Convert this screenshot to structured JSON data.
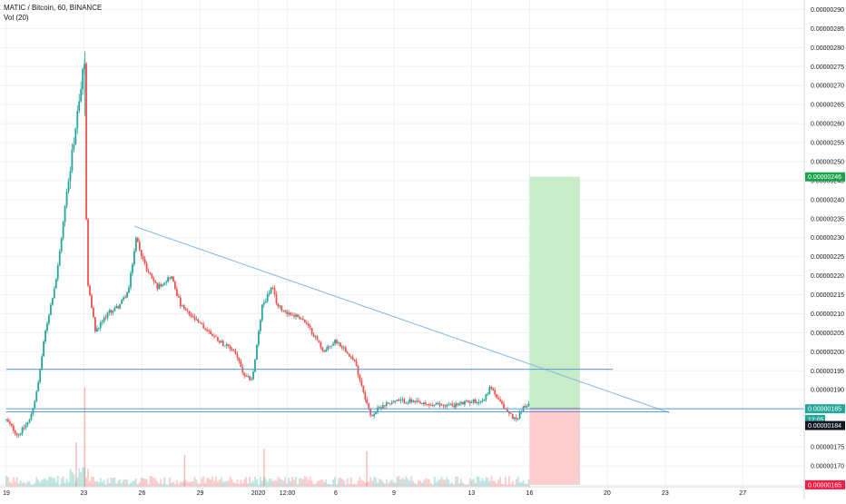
{
  "legend": {
    "symbol_line": "MATIC / Bitcoin, 60, BINANCE",
    "volume_line": "Vol (20)"
  },
  "colors": {
    "bull": "#26a69a",
    "bear": "#ef5350",
    "trendline": "#7fb8e6",
    "hline": "#5b9bd5",
    "grid": "#eef1f5",
    "profit_zone": "#c8ecc8",
    "loss_zone": "#fbcdcd",
    "tag_green": "#1aa34a",
    "tag_teal": "#26a69a",
    "tag_dark": "#131722",
    "tag_red": "#ff1744"
  },
  "chart_data": {
    "type": "candlestick",
    "symbol": "MATIC / Bitcoin",
    "interval": "60",
    "exchange": "BINANCE",
    "ylim": [
      1.645e-06,
      2.925e-06
    ],
    "y_ticks": [
      "0.00000290",
      "0.00000285",
      "0.00000280",
      "0.00000275",
      "0.00000270",
      "0.00000265",
      "0.00000260",
      "0.00000255",
      "0.00000250",
      "0.00000245",
      "0.00000240",
      "0.00000235",
      "0.00000230",
      "0.00000225",
      "0.00000220",
      "0.00000215",
      "0.00000210",
      "0.00000205",
      "0.00000200",
      "0.00000195",
      "0.00000190",
      "0.00000185",
      "0.00000180",
      "0.00000175",
      "0.00000170",
      "0.00000165"
    ],
    "x_ticks": [
      {
        "label": "19",
        "day": 0
      },
      {
        "label": "23",
        "day": 4
      },
      {
        "label": "26",
        "day": 7
      },
      {
        "label": "29",
        "day": 10
      },
      {
        "label": "2020",
        "day": 13
      },
      {
        "label": "12:00",
        "day": 14.5
      },
      {
        "label": "6",
        "day": 17
      },
      {
        "label": "9",
        "day": 20
      },
      {
        "label": "13",
        "day": 24
      },
      {
        "label": "16",
        "day": 27
      },
      {
        "label": "20",
        "day": 31
      },
      {
        "label": "23",
        "day": 34
      },
      {
        "label": "27",
        "day": 38
      }
    ],
    "price_path": [
      [
        0,
        1.82
      ],
      [
        0.6,
        1.78
      ],
      [
        1.2,
        1.82
      ],
      [
        1.6,
        1.9
      ],
      [
        2.0,
        2.05
      ],
      [
        2.6,
        2.2
      ],
      [
        3.2,
        2.45
      ],
      [
        3.6,
        2.6
      ],
      [
        4.05,
        2.77
      ],
      [
        4.15,
        2.2
      ],
      [
        4.6,
        2.05
      ],
      [
        5.2,
        2.1
      ],
      [
        5.8,
        2.12
      ],
      [
        6.3,
        2.16
      ],
      [
        6.7,
        2.3
      ],
      [
        7.2,
        2.22
      ],
      [
        7.8,
        2.17
      ],
      [
        8.5,
        2.2
      ],
      [
        9.0,
        2.12
      ],
      [
        9.8,
        2.08
      ],
      [
        10.5,
        2.05
      ],
      [
        11.2,
        2.02
      ],
      [
        11.8,
        2.0
      ],
      [
        12.3,
        1.93
      ],
      [
        12.7,
        1.93
      ],
      [
        13.2,
        2.12
      ],
      [
        13.7,
        2.17
      ],
      [
        14.0,
        2.12
      ],
      [
        14.6,
        2.1
      ],
      [
        15.2,
        2.09
      ],
      [
        15.8,
        2.05
      ],
      [
        16.4,
        2.0
      ],
      [
        17.0,
        2.03
      ],
      [
        17.6,
        2.0
      ],
      [
        18.0,
        1.97
      ],
      [
        18.4,
        1.9
      ],
      [
        18.8,
        1.83
      ],
      [
        19.4,
        1.86
      ],
      [
        20.0,
        1.87
      ],
      [
        20.8,
        1.87
      ],
      [
        21.6,
        1.86
      ],
      [
        22.4,
        1.86
      ],
      [
        23.2,
        1.86
      ],
      [
        24.0,
        1.87
      ],
      [
        24.6,
        1.87
      ],
      [
        25.0,
        1.91
      ],
      [
        25.4,
        1.87
      ],
      [
        25.9,
        1.84
      ],
      [
        26.3,
        1.82
      ],
      [
        26.6,
        1.85
      ],
      [
        27.0,
        1.86
      ]
    ],
    "volume_spikes": [
      {
        "day": 4.05,
        "level": 0.78
      },
      {
        "day": 3.6,
        "level": 0.35
      },
      {
        "day": 9.2,
        "level": 0.25
      },
      {
        "day": 13.3,
        "level": 0.3
      },
      {
        "day": 18.6,
        "level": 0.28
      }
    ],
    "drawings": {
      "trendline": {
        "from": {
          "day": 6.6,
          "price": 2.33e-06
        },
        "to": {
          "day": 34.2,
          "price": 1.84e-06
        }
      },
      "horizontal_lines": [
        {
          "price": 1.954e-06,
          "from_day": 0,
          "to_day": 31.3
        },
        {
          "price": 1.85e-06,
          "from_day": 0,
          "to_day": 42
        },
        {
          "price": 1.842e-06,
          "from_day": 0,
          "to_day": 34.2
        }
      ],
      "position": {
        "from_day": 27.0,
        "to_day": 29.6,
        "entry": 1.851e-06,
        "target": 2.46e-06,
        "stop": 1.65e-06
      }
    },
    "price_tags": [
      {
        "label": "0.00000246",
        "price": 2.46e-06,
        "color": "tag_green"
      },
      {
        "label": "0.00000185",
        "price": 1.85e-06,
        "color": "tag_teal"
      },
      {
        "label": "12:05",
        "price": 1.822e-06,
        "color": "tag_teal"
      },
      {
        "label": "0.00000184",
        "price": 1.806e-06,
        "color": "tag_dark"
      },
      {
        "label": "0.00000165",
        "price": 1.65e-06,
        "color": "tag_red"
      }
    ]
  }
}
